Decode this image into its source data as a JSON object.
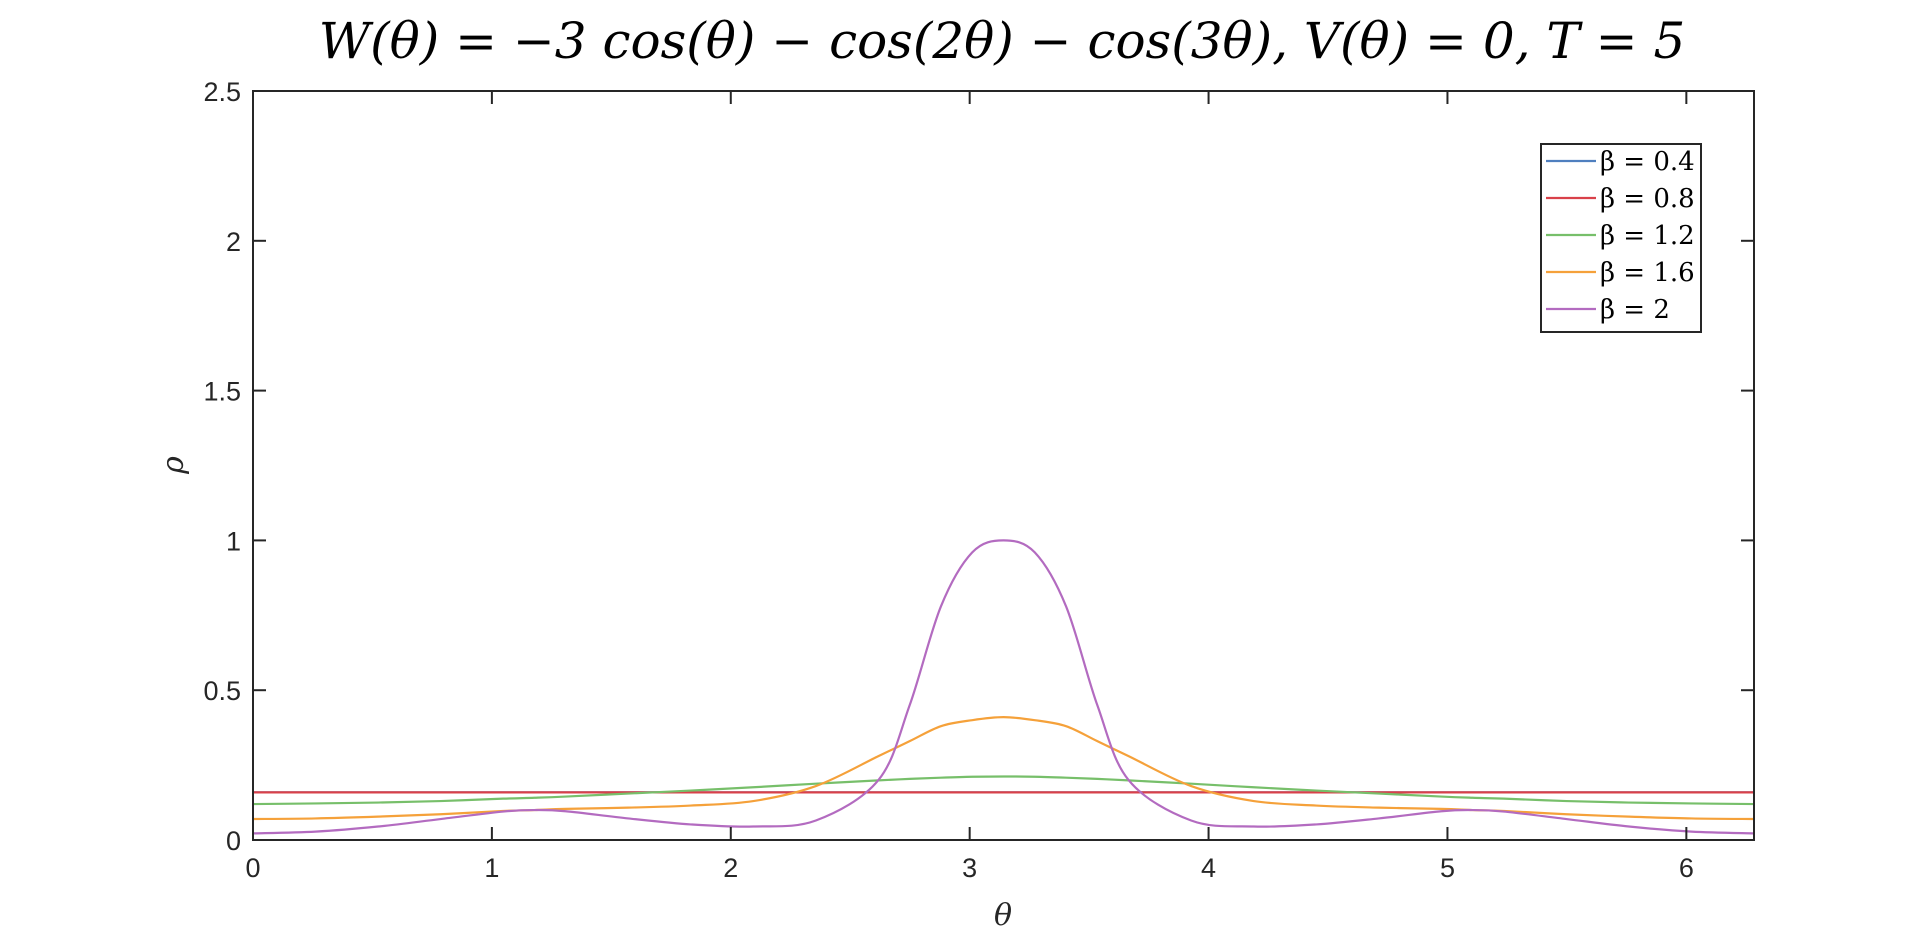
{
  "chart_data": {
    "type": "line",
    "title": "W(θ) = −3 cos(θ) − cos(2θ) − cos(3θ), V(θ) = 0, T = 5",
    "xlabel": "θ",
    "ylabel": "ρ",
    "xlim": [
      0,
      6.2832
    ],
    "ylim": [
      0,
      2.5
    ],
    "xticks": [
      0,
      1,
      2,
      3,
      4,
      5,
      6
    ],
    "xtick_labels": [
      "0",
      "1",
      "2",
      "3",
      "4",
      "5",
      "6"
    ],
    "yticks": [
      0,
      0.5,
      1,
      1.5,
      2,
      2.5
    ],
    "ytick_labels": [
      "0",
      "0.5",
      "1",
      "1.5",
      "2",
      "2.5"
    ],
    "grid": false,
    "legend_position": "top-right",
    "x": [
      0,
      0.2618,
      0.5236,
      0.7854,
      1.0472,
      1.1781,
      1.309,
      1.5708,
      1.8326,
      2.0944,
      2.3562,
      2.618,
      2.7489,
      2.8798,
      3.0107,
      3.1416,
      3.2725,
      3.4034,
      3.5343,
      3.6652,
      3.927,
      4.1888,
      4.4506,
      4.7124,
      4.9742,
      5.1051,
      5.236,
      5.4978,
      5.7596,
      6.0214,
      6.2832
    ],
    "series": [
      {
        "name": "β = 0.4",
        "color": "#4f7fbf",
        "values": [
          0.159,
          0.159,
          0.159,
          0.159,
          0.159,
          0.159,
          0.159,
          0.159,
          0.159,
          0.159,
          0.159,
          0.159,
          0.159,
          0.159,
          0.159,
          0.159,
          0.159,
          0.159,
          0.159,
          0.159,
          0.159,
          0.159,
          0.159,
          0.159,
          0.159,
          0.159,
          0.159,
          0.159,
          0.159,
          0.159,
          0.159
        ]
      },
      {
        "name": "β = 0.8",
        "color": "#d9414a",
        "values": [
          0.159,
          0.159,
          0.159,
          0.159,
          0.159,
          0.159,
          0.159,
          0.159,
          0.159,
          0.159,
          0.159,
          0.159,
          0.159,
          0.159,
          0.159,
          0.159,
          0.159,
          0.159,
          0.159,
          0.159,
          0.159,
          0.159,
          0.159,
          0.159,
          0.159,
          0.159,
          0.159,
          0.159,
          0.159,
          0.159,
          0.159
        ]
      },
      {
        "name": "β = 1.2",
        "color": "#77bf6a",
        "values": [
          0.12,
          0.122,
          0.125,
          0.13,
          0.138,
          0.141,
          0.145,
          0.155,
          0.165,
          0.176,
          0.188,
          0.199,
          0.204,
          0.208,
          0.211,
          0.212,
          0.211,
          0.208,
          0.204,
          0.199,
          0.188,
          0.176,
          0.165,
          0.155,
          0.145,
          0.141,
          0.138,
          0.13,
          0.125,
          0.122,
          0.12
        ]
      },
      {
        "name": "β = 1.6",
        "color": "#f5a13a",
        "values": [
          0.07,
          0.072,
          0.078,
          0.086,
          0.097,
          0.1,
          0.104,
          0.108,
          0.115,
          0.13,
          0.18,
          0.28,
          0.33,
          0.38,
          0.4,
          0.41,
          0.4,
          0.38,
          0.33,
          0.28,
          0.18,
          0.13,
          0.115,
          0.108,
          0.104,
          0.1,
          0.097,
          0.086,
          0.078,
          0.072,
          0.07
        ]
      },
      {
        "name": "β = 2",
        "color": "#b36bc0",
        "values": [
          0.022,
          0.028,
          0.045,
          0.07,
          0.095,
          0.1,
          0.096,
          0.072,
          0.052,
          0.045,
          0.065,
          0.2,
          0.45,
          0.78,
          0.96,
          1.0,
          0.96,
          0.78,
          0.45,
          0.2,
          0.065,
          0.045,
          0.052,
          0.072,
          0.096,
          0.1,
          0.095,
          0.07,
          0.045,
          0.028,
          0.022
        ]
      }
    ]
  }
}
